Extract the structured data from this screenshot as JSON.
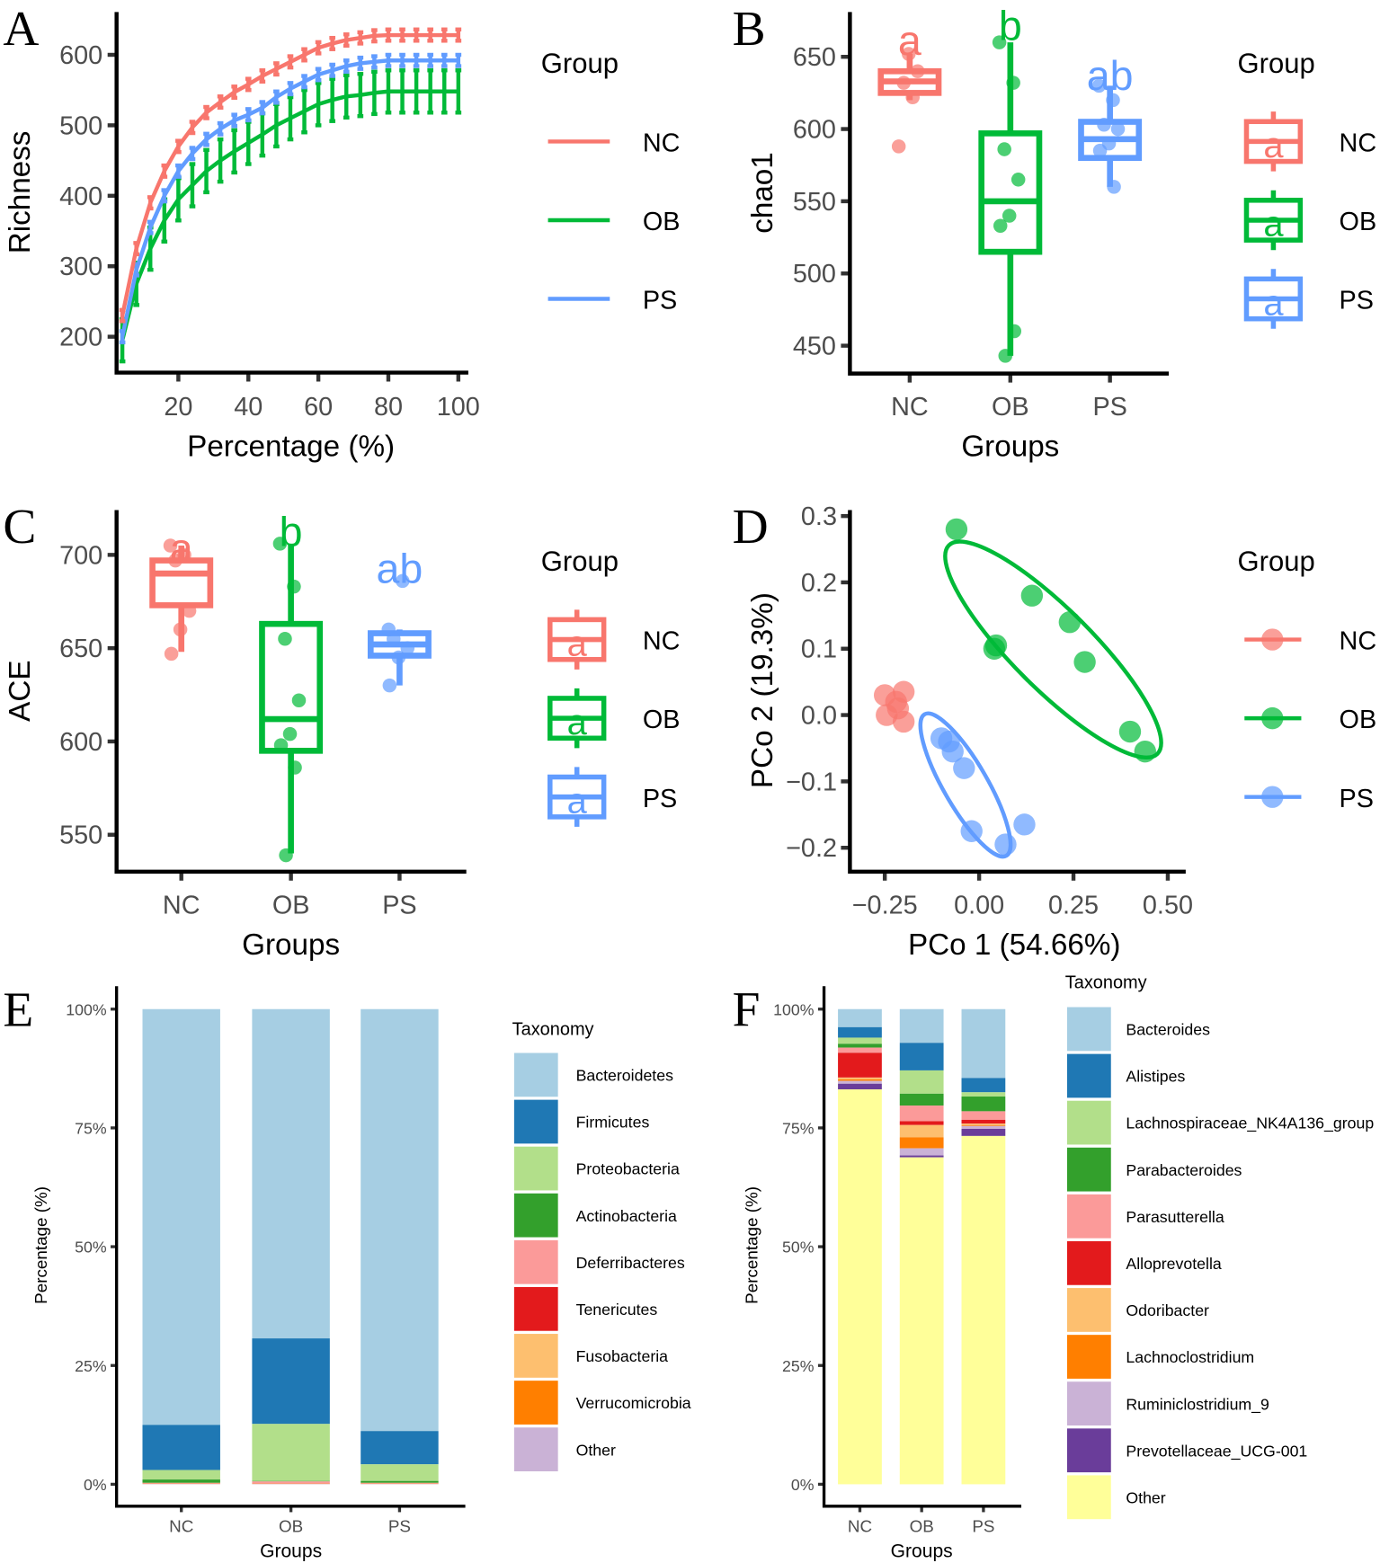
{
  "colors": {
    "NC": "#F8766D",
    "OB": "#00BA38",
    "PS": "#619CFF",
    "axis": "#000000"
  },
  "chart_data": [
    {
      "panel": "A",
      "type": "line",
      "xlabel": "Percentage (%)",
      "ylabel": "Richness",
      "xlim": [
        2,
        103
      ],
      "ylim": [
        150,
        660
      ],
      "xticks": [
        20,
        40,
        60,
        80,
        100
      ],
      "yticks": [
        200,
        300,
        400,
        500,
        600
      ],
      "legend": {
        "title": "Group",
        "placement": "right"
      },
      "x": [
        4,
        8,
        12,
        16,
        20,
        24,
        28,
        32,
        36,
        40,
        44,
        48,
        52,
        56,
        60,
        64,
        68,
        72,
        76,
        80,
        84,
        88,
        92,
        96,
        100
      ],
      "series": [
        {
          "name": "NC",
          "values": [
            230,
            325,
            390,
            435,
            470,
            497,
            518,
            533,
            547,
            558,
            570,
            580,
            590,
            600,
            610,
            616,
            621,
            624,
            627,
            628,
            628,
            628,
            628,
            628,
            628
          ],
          "error": 8
        },
        {
          "name": "OB",
          "values": [
            195,
            275,
            325,
            365,
            395,
            415,
            435,
            450,
            463,
            475,
            487,
            500,
            510,
            520,
            530,
            536,
            541,
            543,
            546,
            548,
            548,
            548,
            548,
            548,
            548
          ],
          "error": 30
        },
        {
          "name": "PS",
          "values": [
            200,
            295,
            355,
            400,
            435,
            460,
            480,
            495,
            507,
            515,
            525,
            540,
            552,
            562,
            572,
            578,
            584,
            588,
            590,
            592,
            592,
            592,
            592,
            592,
            592
          ],
          "error": 8
        }
      ]
    },
    {
      "panel": "B",
      "type": "box",
      "xlabel": "Groups",
      "ylabel": "chao1",
      "ylim": [
        430,
        675
      ],
      "yticks": [
        450,
        500,
        550,
        600,
        650
      ],
      "categories": [
        "NC",
        "OB",
        "PS"
      ],
      "legend": {
        "title": "Group",
        "placement": "right",
        "key_letter": "a"
      },
      "groups": [
        {
          "name": "NC",
          "letter": "a",
          "q1": 625,
          "median": 633,
          "q3": 640,
          "lo": 620,
          "hi": 652,
          "points": [
            588,
            622,
            632,
            640,
            652
          ]
        },
        {
          "name": "OB",
          "letter": "b",
          "q1": 515,
          "median": 550,
          "q3": 597,
          "lo": 443,
          "hi": 660,
          "points": [
            660,
            632,
            586,
            565,
            540,
            533,
            460,
            443
          ]
        },
        {
          "name": "PS",
          "letter": "ab",
          "q1": 580,
          "median": 593,
          "q3": 605,
          "lo": 560,
          "hi": 630,
          "points": [
            630,
            620,
            603,
            600,
            590,
            585,
            560
          ]
        }
      ]
    },
    {
      "panel": "C",
      "type": "box",
      "xlabel": "Groups",
      "ylabel": "ACE",
      "ylim": [
        530,
        720
      ],
      "yticks": [
        550,
        600,
        650,
        700
      ],
      "categories": [
        "NC",
        "OB",
        "PS"
      ],
      "legend": {
        "title": "Group",
        "placement": "right",
        "key_letter": "a"
      },
      "groups": [
        {
          "name": "NC",
          "letter": "a",
          "q1": 673,
          "median": 690,
          "q3": 697,
          "lo": 648,
          "hi": 705,
          "points": [
            705,
            700,
            697,
            670,
            660,
            647
          ]
        },
        {
          "name": "OB",
          "letter": "b",
          "q1": 595,
          "median": 612,
          "q3": 663,
          "lo": 540,
          "hi": 706,
          "points": [
            706,
            683,
            655,
            622,
            604,
            598,
            586,
            539
          ]
        },
        {
          "name": "PS",
          "letter": "ab",
          "q1": 646,
          "median": 652,
          "q3": 658,
          "lo": 630,
          "hi": 660,
          "points": [
            660,
            686,
            655,
            650,
            645,
            630
          ]
        }
      ]
    },
    {
      "panel": "D",
      "type": "scatter",
      "xlabel": "PCo 1 (54.66%)",
      "ylabel": "PCo 2 (19.3%)",
      "xlim": [
        -0.34,
        0.55
      ],
      "ylim": [
        -0.24,
        0.31
      ],
      "xticks": [
        -0.25,
        0.0,
        0.25,
        0.5
      ],
      "xticklabels": [
        "−0.25",
        "0.00",
        "0.25",
        "0.50"
      ],
      "yticks": [
        0.3,
        0.2,
        0.1,
        0.0,
        -0.1,
        -0.2
      ],
      "yticklabels": [
        "0.3",
        "0.2",
        "0.1",
        "0.0",
        "−0.1",
        "−0.2"
      ],
      "legend": {
        "title": "Group",
        "placement": "right"
      },
      "series": [
        {
          "name": "NC",
          "points": [
            [
              -0.25,
              0.03
            ],
            [
              -0.22,
              0.02
            ],
            [
              -0.2,
              0.035
            ],
            [
              -0.245,
              0.0
            ],
            [
              -0.215,
              0.01
            ],
            [
              -0.2,
              -0.01
            ]
          ]
        },
        {
          "name": "OB",
          "points": [
            [
              -0.06,
              0.28
            ],
            [
              0.04,
              0.1
            ],
            [
              0.045,
              0.105
            ],
            [
              0.14,
              0.18
            ],
            [
              0.24,
              0.14
            ],
            [
              0.28,
              0.08
            ],
            [
              0.4,
              -0.025
            ],
            [
              0.44,
              -0.055
            ]
          ]
        },
        {
          "name": "PS",
          "points": [
            [
              -0.1,
              -0.035
            ],
            [
              -0.08,
              -0.04
            ],
            [
              -0.07,
              -0.055
            ],
            [
              -0.04,
              -0.08
            ],
            [
              -0.02,
              -0.175
            ],
            [
              0.07,
              -0.195
            ],
            [
              0.12,
              -0.165
            ]
          ]
        }
      ]
    },
    {
      "panel": "E",
      "type": "bar",
      "stacked": true,
      "xlabel": "Groups",
      "ylabel": "Percentage (%)",
      "yticks": [
        "0%",
        "25%",
        "50%",
        "75%",
        "100%"
      ],
      "categories": [
        "NC",
        "OB",
        "PS"
      ],
      "legend": {
        "title": "Taxonomy",
        "placement": "right"
      },
      "series": [
        {
          "name": "Bacteroidetes",
          "color": "#A6CEE3",
          "values": [
            87.5,
            69.3,
            88.8
          ]
        },
        {
          "name": "Firmicutes",
          "color": "#1F78B4",
          "values": [
            9.5,
            18.0,
            7.0
          ]
        },
        {
          "name": "Proteobacteria",
          "color": "#B2DF8A",
          "values": [
            2.0,
            12.0,
            3.5
          ]
        },
        {
          "name": "Actinobacteria",
          "color": "#33A02C",
          "values": [
            0.7,
            0.1,
            0.4
          ]
        },
        {
          "name": "Deferribacteres",
          "color": "#FB9A99",
          "values": [
            0.1,
            0.4,
            0.1
          ]
        },
        {
          "name": "Tenericutes",
          "color": "#E31A1C",
          "values": [
            0.05,
            0.05,
            0.05
          ]
        },
        {
          "name": "Fusobacteria",
          "color": "#FDBF6F",
          "values": [
            0.05,
            0.05,
            0.05
          ]
        },
        {
          "name": "Verrucomicrobia",
          "color": "#FF7F00",
          "values": [
            0.05,
            0.05,
            0.05
          ]
        },
        {
          "name": "Other",
          "color": "#CAB2D6",
          "values": [
            0.05,
            0.05,
            0.05
          ]
        }
      ]
    },
    {
      "panel": "F",
      "type": "bar",
      "stacked": true,
      "xlabel": "Groups",
      "ylabel": "Percentage (%)",
      "yticks": [
        "0%",
        "25%",
        "50%",
        "75%",
        "100%"
      ],
      "categories": [
        "NC",
        "OB",
        "PS"
      ],
      "legend": {
        "title": "Taxonomy",
        "placement": "right"
      },
      "series": [
        {
          "name": "Bacteroides",
          "color": "#A6CEE3",
          "values": [
            3.8,
            7.1,
            14.5
          ]
        },
        {
          "name": "Alistipes",
          "color": "#1F78B4",
          "values": [
            2.2,
            5.8,
            3.0
          ]
        },
        {
          "name": "Lachnospiraceae_NK4A136_group",
          "color": "#B2DF8A",
          "values": [
            1.3,
            4.9,
            0.9
          ]
        },
        {
          "name": "Parabacteroides",
          "color": "#33A02C",
          "values": [
            0.8,
            2.5,
            3.1
          ]
        },
        {
          "name": "Parasutterella",
          "color": "#FB9A99",
          "values": [
            1.1,
            3.3,
            1.8
          ]
        },
        {
          "name": "Alloprevotella",
          "color": "#E31A1C",
          "values": [
            5.2,
            0.8,
            0.8
          ]
        },
        {
          "name": "Odoribacter",
          "color": "#FDBF6F",
          "values": [
            0.4,
            2.6,
            0.3
          ]
        },
        {
          "name": "Lachnoclostridium",
          "color": "#FF7F00",
          "values": [
            0.3,
            2.3,
            0.2
          ]
        },
        {
          "name": "Ruminiclostridium_9",
          "color": "#CAB2D6",
          "values": [
            0.6,
            1.5,
            0.6
          ]
        },
        {
          "name": "Prevotellaceae_UCG-001",
          "color": "#6A3D9A",
          "values": [
            1.2,
            0.4,
            1.5
          ]
        },
        {
          "name": "Other",
          "color": "#FFFF99",
          "values": [
            83.1,
            68.8,
            73.3
          ]
        }
      ]
    }
  ]
}
